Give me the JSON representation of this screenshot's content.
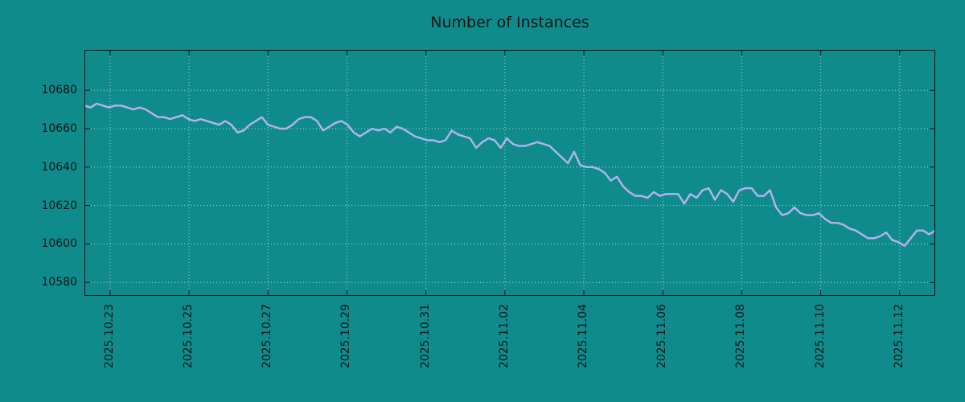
{
  "chart_data": {
    "type": "line",
    "title": "Number of Instances",
    "xlabel": "",
    "ylabel": "",
    "legend": "none",
    "grid": "dotted",
    "background_color": "#0f8b8b",
    "text_color": "#0b1616",
    "axis_color": "#0b1414",
    "grid_color": "#cdeee8",
    "line_color": "#b4b4ec",
    "ylim": [
      10573,
      10701
    ],
    "y_ticks": [
      10580,
      10600,
      10620,
      10640,
      10660,
      10680
    ],
    "xlim_days": [
      0.35,
      21.9
    ],
    "x_tick_days": [
      1,
      3,
      5,
      7,
      9,
      11,
      13,
      15,
      17,
      19,
      21
    ],
    "x_tick_labels": [
      "2025.10.23",
      "2025.10.25",
      "2025.10.27",
      "2025.10.29",
      "2025.10.31",
      "2025.11.02",
      "2025.11.04",
      "2025.11.06",
      "2025.11.08",
      "2025.11.10",
      "2025.11.12"
    ],
    "series": [
      {
        "name": "instances",
        "values": [
          10672,
          10671,
          10673,
          10672,
          10671,
          10672,
          10672,
          10671,
          10670,
          10671,
          10670,
          10668,
          10666,
          10666,
          10665,
          10666,
          10667,
          10665,
          10664,
          10665,
          10664,
          10663,
          10662,
          10664,
          10662,
          10658,
          10659,
          10662,
          10664,
          10666,
          10662,
          10661,
          10660,
          10660,
          10662,
          10665,
          10666,
          10666,
          10664,
          10659,
          10661,
          10663,
          10664,
          10662,
          10658,
          10656,
          10658,
          10660,
          10659,
          10660,
          10658,
          10661,
          10660,
          10658,
          10656,
          10655,
          10654,
          10654,
          10653,
          10654,
          10659,
          10657,
          10656,
          10655,
          10650,
          10653,
          10655,
          10654,
          10650,
          10655,
          10652,
          10651,
          10651,
          10652,
          10653,
          10652,
          10651,
          10648,
          10645,
          10642,
          10648,
          10641,
          10640,
          10640,
          10639,
          10637,
          10633,
          10635,
          10630,
          10627,
          10625,
          10625,
          10624,
          10627,
          10625,
          10626,
          10626,
          10626,
          10621,
          10626,
          10624,
          10628,
          10629,
          10623,
          10628,
          10626,
          10622,
          10628,
          10629,
          10629,
          10625,
          10625,
          10628,
          10619,
          10615,
          10616,
          10619,
          10616,
          10615,
          10615,
          10616,
          10613,
          10611,
          10611,
          10610,
          10608,
          10607,
          10605,
          10603,
          10603,
          10604,
          10606,
          10602,
          10601,
          10599,
          10603,
          10607,
          10607,
          10605,
          10607
        ]
      }
    ]
  }
}
